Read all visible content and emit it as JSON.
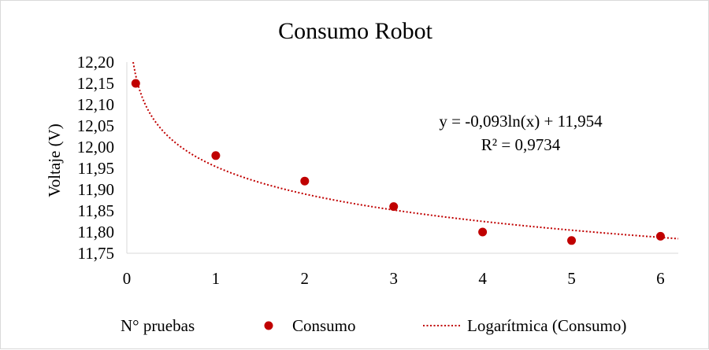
{
  "chart_data": {
    "type": "scatter",
    "title": "Consumo Robot",
    "xlabel": "N° pruebas",
    "ylabel": "Voltaje (V)",
    "xlim": [
      0,
      6.2
    ],
    "ylim": [
      11.75,
      12.2
    ],
    "x_ticks": [
      "0",
      "1",
      "2",
      "3",
      "4",
      "5",
      "6"
    ],
    "y_ticks": [
      "12,20",
      "12,15",
      "12,10",
      "12,05",
      "12,00",
      "11,95",
      "11,90",
      "11,85",
      "11,80",
      "11,75"
    ],
    "grid": false,
    "series": [
      {
        "name": "Consumo",
        "color": "#c00000",
        "points": [
          {
            "x": 0.1,
            "y": 12.15
          },
          {
            "x": 1,
            "y": 11.98
          },
          {
            "x": 2,
            "y": 11.92
          },
          {
            "x": 3,
            "y": 11.86
          },
          {
            "x": 4,
            "y": 11.8
          },
          {
            "x": 5,
            "y": 11.78
          },
          {
            "x": 6,
            "y": 11.79
          }
        ]
      }
    ],
    "trendline": {
      "name": "Logarítmica (Consumo)",
      "type": "logarithmic",
      "a": -0.093,
      "b": 11.954,
      "color": "#c00000",
      "equation": "y = -0,093ln(x)  + 11,954",
      "r_squared": "R² = 0,9734"
    },
    "legend_position": "bottom"
  }
}
